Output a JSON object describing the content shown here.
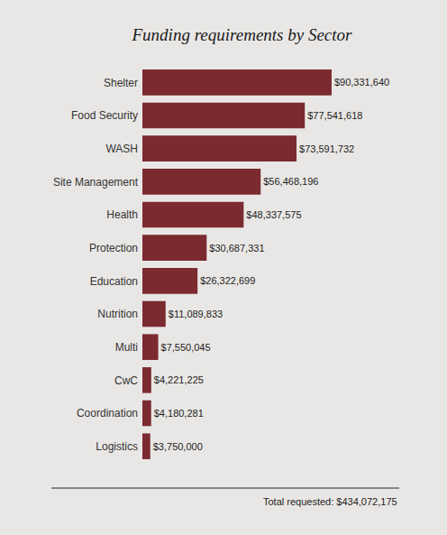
{
  "chart_data": {
    "type": "bar",
    "orientation": "horizontal",
    "title": "Funding requirements by Sector",
    "categories": [
      "Shelter",
      "Food Security",
      "WASH",
      "Site Management",
      "Health",
      "Protection",
      "Education",
      "Nutrition",
      "Multi",
      "CwC",
      "Coordination",
      "Logistics"
    ],
    "values": [
      90331640,
      77541618,
      73591732,
      56468196,
      48337575,
      30687331,
      26322699,
      11089833,
      7550045,
      4221225,
      4180281,
      3750000
    ],
    "value_labels": [
      "$90,331,640",
      "$77,541,618",
      "$73,591,732",
      "$56,468,196",
      "$48,337,575",
      "$30,687,331",
      "$26,322,699",
      "$11,089,833",
      "$7,550,045",
      "$4,221,225",
      "$4,180,281",
      "$3,750,000"
    ],
    "color": "#7b2a30",
    "data_labels": true,
    "tick_labels": "y",
    "grid": false,
    "annotations": [
      "Total requested: $434,072,175"
    ]
  }
}
